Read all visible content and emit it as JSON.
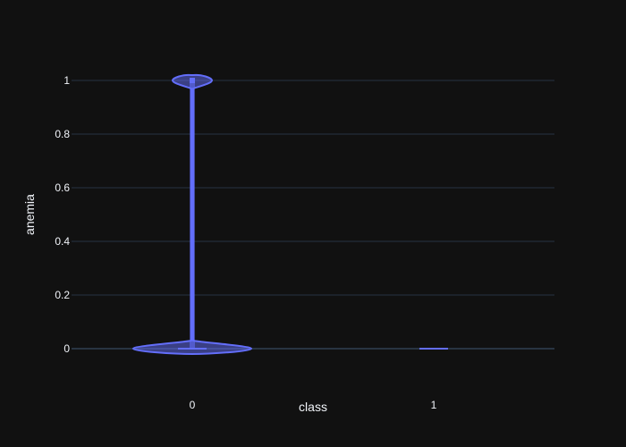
{
  "colors": {
    "background": "#111111",
    "grid": "#283442",
    "violin_line": "#636efa",
    "violin_fill": "#636efa",
    "text": "#f2f5fa"
  },
  "chart_data": {
    "type": "violin",
    "xlabel": "class",
    "ylabel": "anemia",
    "categories": [
      "0",
      "1"
    ],
    "ylim": [
      -0.1,
      1.1
    ],
    "yticks": [
      0,
      0.2,
      0.4,
      0.6,
      0.8,
      1
    ],
    "ytick_labels": [
      "0",
      "0.2",
      "0.4",
      "0.6",
      "0.8",
      "1"
    ],
    "grid": true,
    "series": [
      {
        "category": "0",
        "values_distribution": {
          "0": "majority",
          "1": "minority"
        },
        "median": 0,
        "q1": 0,
        "q3": 1,
        "min": 0,
        "max": 1
      },
      {
        "category": "1",
        "values_distribution": {
          "0": "all"
        },
        "median": 0,
        "q1": 0,
        "q3": 0,
        "min": 0,
        "max": 0
      }
    ]
  }
}
